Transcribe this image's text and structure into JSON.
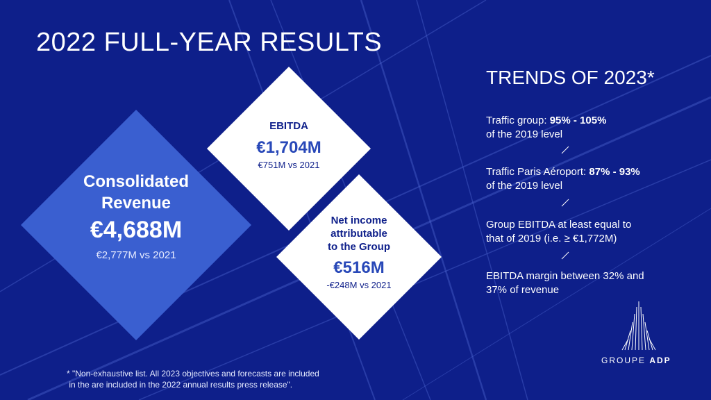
{
  "title": "2022 FULL-YEAR RESULTS",
  "colors": {
    "background": "#0e1f8a",
    "revenue_diamond": "#3a5fd0",
    "white_diamond": "#ffffff",
    "value_blue": "#2848b8"
  },
  "revenue": {
    "label_line1": "Consolidated",
    "label_line2": "Revenue",
    "value": "€4,688M",
    "comparison": "€2,777M vs 2021"
  },
  "ebitda": {
    "label": "EBITDA",
    "value": "€1,704M",
    "comparison": "€751M vs 2021"
  },
  "net_income": {
    "label_line1": "Net income",
    "label_line2": "attributable",
    "label_line3": "to the Group",
    "value": "€516M",
    "comparison": "-€248M vs 2021"
  },
  "trends": {
    "title": "TRENDS OF 2023*",
    "items": [
      {
        "prefix": "Traffic group: ",
        "highlight": "95% - 105%",
        "line2": "of the 2019 level"
      },
      {
        "prefix": "Traffic Paris Aéroport: ",
        "highlight": "87% - 93%",
        "line2": "of the 2019 level"
      },
      {
        "line1": "Group EBITDA at least equal to",
        "line2": "that of 2019 (i.e. ≥ €1,772M)"
      },
      {
        "line1": "EBITDA margin between 32% and",
        "line2": "37% of revenue"
      }
    ]
  },
  "footnote": {
    "line1": "* \"Non-exhaustive list. All 2023 objectives and forecasts are included",
    "line2": " in the are included in the 2022 annual results press release\"."
  },
  "logo": {
    "text_light": "GROUPE ",
    "text_bold": "ADP",
    "icon": "adp-logo-icon"
  }
}
